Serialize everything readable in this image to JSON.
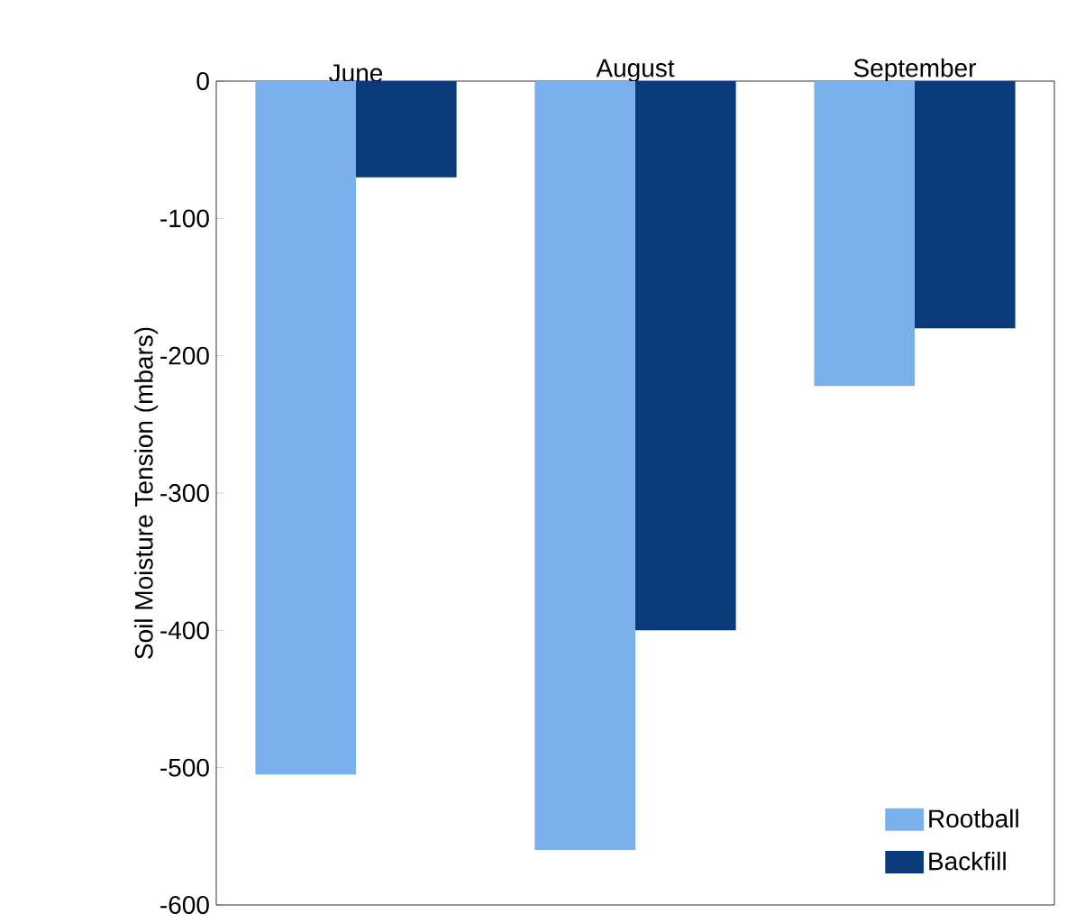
{
  "chart_data": {
    "type": "bar",
    "ylabel": "Soil Moisture Tension (mbars)",
    "categories": [
      "June",
      "August",
      "September"
    ],
    "series": [
      {
        "name": "Rootball",
        "color": "#7ab0ec",
        "values": [
          -505,
          -560,
          -222
        ]
      },
      {
        "name": "Backfill",
        "color": "#0a3a7a",
        "values": [
          -70,
          -400,
          -180
        ]
      }
    ],
    "ylim": [
      -600,
      0
    ],
    "yticks": [
      0,
      -100,
      -200,
      -300,
      -400,
      -500,
      -600
    ],
    "grid": false,
    "legend": "bottom right"
  }
}
